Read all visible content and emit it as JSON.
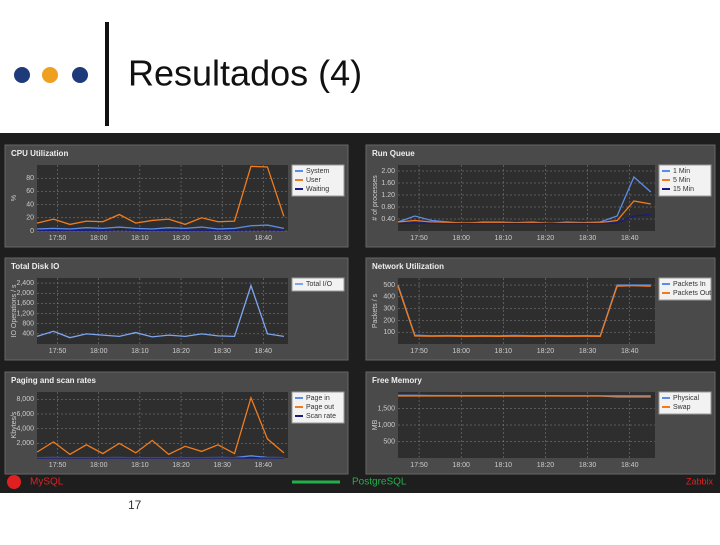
{
  "slide": {
    "title": "Resultados (4)",
    "page_number": "17",
    "labels": [
      "MySQL",
      "PostgreSQL",
      "Zabbix"
    ]
  },
  "chart_data": [
    {
      "type": "line",
      "title": "CPU Utilization",
      "y_label": "%",
      "x": [
        45,
        49,
        53,
        57,
        61,
        65,
        69,
        73,
        77,
        81,
        85,
        89,
        93,
        97,
        101,
        105
      ],
      "xlim": [
        45,
        106
      ],
      "xticks": [
        {
          "value": 50,
          "label": "17:50"
        },
        {
          "value": 60,
          "label": "18:00"
        },
        {
          "value": 70,
          "label": "18:10"
        },
        {
          "value": 80,
          "label": "18:20"
        },
        {
          "value": 90,
          "label": "18:30"
        },
        {
          "value": 100,
          "label": "18:40"
        }
      ],
      "ylim": [
        0,
        100
      ],
      "yticks": [
        0,
        20,
        40,
        60,
        80
      ],
      "grid": true,
      "series": [
        {
          "name": "System",
          "color": "#5b8de8",
          "values": [
            3,
            4,
            3,
            5,
            4,
            6,
            4,
            3,
            5,
            4,
            6,
            3,
            4,
            8,
            9,
            4
          ]
        },
        {
          "name": "User",
          "color": "#f07c1e",
          "values": [
            12,
            18,
            10,
            15,
            14,
            25,
            12,
            16,
            18,
            10,
            20,
            14,
            15,
            98,
            97,
            22
          ]
        },
        {
          "name": "Waiting",
          "color": "#1a1a80",
          "values": [
            1,
            1,
            1,
            1,
            1,
            2,
            1,
            1,
            1,
            1,
            1,
            1,
            1,
            2,
            2,
            1
          ]
        }
      ]
    },
    {
      "type": "line",
      "title": "Run Queue",
      "y_label": "# of processes",
      "x": [
        45,
        49,
        53,
        57,
        61,
        65,
        69,
        73,
        77,
        81,
        85,
        89,
        93,
        97,
        101,
        105
      ],
      "xlim": [
        45,
        106
      ],
      "xticks": [
        {
          "value": 50,
          "label": "17:50"
        },
        {
          "value": 60,
          "label": "18:00"
        },
        {
          "value": 70,
          "label": "18:10"
        },
        {
          "value": 80,
          "label": "18:20"
        },
        {
          "value": 90,
          "label": "18:30"
        },
        {
          "value": 100,
          "label": "18:40"
        }
      ],
      "ylim": [
        0,
        2.2
      ],
      "yticks": [
        {
          "value": 0.4,
          "label": "0.40"
        },
        {
          "value": 0.8,
          "label": "0.80"
        },
        {
          "value": 1.2,
          "label": "1.20"
        },
        {
          "value": 1.6,
          "label": "1.60"
        },
        {
          "value": 2,
          "label": "2.00"
        }
      ],
      "grid": true,
      "series": [
        {
          "name": "1 Min",
          "color": "#5b8de8",
          "values": [
            0.3,
            0.5,
            0.35,
            0.3,
            0.25,
            0.3,
            0.3,
            0.28,
            0.3,
            0.25,
            0.3,
            0.28,
            0.3,
            0.5,
            1.8,
            1.3
          ]
        },
        {
          "name": "5 Min",
          "color": "#f07c1e",
          "values": [
            0.3,
            0.35,
            0.3,
            0.28,
            0.27,
            0.28,
            0.28,
            0.27,
            0.28,
            0.26,
            0.27,
            0.27,
            0.28,
            0.35,
            1.0,
            0.9
          ]
        },
        {
          "name": "15 Min",
          "color": "#1a1a80",
          "values": [
            0.25,
            0.27,
            0.26,
            0.25,
            0.25,
            0.25,
            0.25,
            0.25,
            0.25,
            0.25,
            0.25,
            0.25,
            0.25,
            0.27,
            0.5,
            0.55
          ]
        }
      ]
    },
    {
      "type": "line",
      "title": "Total Disk IO",
      "y_label": "IO Operations / s",
      "x": [
        45,
        49,
        53,
        57,
        61,
        65,
        69,
        73,
        77,
        81,
        85,
        89,
        93,
        97,
        101,
        105
      ],
      "xlim": [
        45,
        106
      ],
      "xticks": [
        {
          "value": 50,
          "label": "17:50"
        },
        {
          "value": 60,
          "label": "18:00"
        },
        {
          "value": 70,
          "label": "18:10"
        },
        {
          "value": 80,
          "label": "18:20"
        },
        {
          "value": 90,
          "label": "18:30"
        },
        {
          "value": 100,
          "label": "18:40"
        }
      ],
      "ylim": [
        0,
        2600
      ],
      "yticks": [
        400,
        800,
        {
          "value": 1200,
          "label": "1,200"
        },
        {
          "value": 1600,
          "label": "1,600"
        },
        {
          "value": 2000,
          "label": "2,000"
        },
        {
          "value": 2400,
          "label": "2,400"
        }
      ],
      "grid": true,
      "series": [
        {
          "name": "Total I/O",
          "color": "#7ea6f0",
          "values": [
            300,
            500,
            250,
            400,
            350,
            300,
            450,
            280,
            350,
            300,
            400,
            320,
            300,
            2300,
            400,
            300
          ]
        }
      ]
    },
    {
      "type": "line",
      "title": "Network Utilization",
      "y_label": "Packets / s",
      "x": [
        45,
        49,
        53,
        57,
        61,
        65,
        69,
        73,
        77,
        81,
        85,
        89,
        93,
        97,
        101,
        105
      ],
      "xlim": [
        45,
        106
      ],
      "xticks": [
        {
          "value": 50,
          "label": "17:50"
        },
        {
          "value": 60,
          "label": "18:00"
        },
        {
          "value": 70,
          "label": "18:10"
        },
        {
          "value": 80,
          "label": "18:20"
        },
        {
          "value": 90,
          "label": "18:30"
        },
        {
          "value": 100,
          "label": "18:40"
        }
      ],
      "ylim": [
        0,
        560
      ],
      "yticks": [
        100,
        200,
        300,
        400,
        500
      ],
      "grid": true,
      "series": [
        {
          "name": "Packets In",
          "color": "#5b8de8",
          "values": [
            500,
            75,
            70,
            72,
            70,
            71,
            70,
            73,
            70,
            72,
            70,
            71,
            70,
            500,
            500,
            500
          ]
        },
        {
          "name": "Packets Out",
          "color": "#f07c1e",
          "values": [
            490,
            68,
            66,
            67,
            65,
            66,
            65,
            67,
            65,
            66,
            65,
            66,
            65,
            490,
            495,
            490
          ]
        }
      ]
    },
    {
      "type": "line",
      "title": "Paging and scan rates",
      "y_label": "Kbytes/s",
      "x": [
        45,
        49,
        53,
        57,
        61,
        65,
        69,
        73,
        77,
        81,
        85,
        89,
        93,
        97,
        101,
        105
      ],
      "xlim": [
        45,
        106
      ],
      "xticks": [
        {
          "value": 50,
          "label": "17:50"
        },
        {
          "value": 60,
          "label": "18:00"
        },
        {
          "value": 70,
          "label": "18:10"
        },
        {
          "value": 80,
          "label": "18:20"
        },
        {
          "value": 90,
          "label": "18:30"
        },
        {
          "value": 100,
          "label": "18:40"
        }
      ],
      "ylim": [
        0,
        9000
      ],
      "yticks": [
        {
          "value": 2000,
          "label": "2,000"
        },
        {
          "value": 4000,
          "label": "4,000"
        },
        {
          "value": 6000,
          "label": "6,000"
        },
        {
          "value": 8000,
          "label": "8,000"
        }
      ],
      "grid": true,
      "series": [
        {
          "name": "Page in",
          "color": "#5b8de8",
          "values": [
            50,
            60,
            40,
            55,
            45,
            60,
            50,
            40,
            55,
            45,
            50,
            60,
            45,
            300,
            80,
            50
          ]
        },
        {
          "name": "Page out",
          "color": "#f07c1e",
          "values": [
            800,
            2200,
            500,
            1800,
            600,
            2000,
            700,
            2400,
            500,
            1600,
            900,
            1800,
            600,
            8200,
            2600,
            700
          ]
        },
        {
          "name": "Scan rate",
          "color": "#1a1a80",
          "values": [
            0,
            0,
            0,
            0,
            0,
            0,
            0,
            0,
            0,
            0,
            0,
            0,
            0,
            0,
            0,
            0
          ]
        }
      ]
    },
    {
      "type": "line",
      "title": "Free Memory",
      "y_label": "MB",
      "x": [
        45,
        49,
        53,
        57,
        61,
        65,
        69,
        73,
        77,
        81,
        85,
        89,
        93,
        97,
        101,
        105
      ],
      "xlim": [
        45,
        106
      ],
      "xticks": [
        {
          "value": 50,
          "label": "17:50"
        },
        {
          "value": 60,
          "label": "18:00"
        },
        {
          "value": 70,
          "label": "18:10"
        },
        {
          "value": 80,
          "label": "18:20"
        },
        {
          "value": 90,
          "label": "18:30"
        },
        {
          "value": 100,
          "label": "18:40"
        }
      ],
      "ylim": [
        0,
        2000
      ],
      "yticks": [
        500,
        {
          "value": 1000,
          "label": "1,000"
        },
        {
          "value": 1500,
          "label": "1,500"
        }
      ],
      "grid": true,
      "series": [
        {
          "name": "Physical",
          "color": "#5b8de8",
          "values": [
            1900,
            1900,
            1895,
            1895,
            1890,
            1890,
            1890,
            1885,
            1885,
            1885,
            1880,
            1880,
            1880,
            1850,
            1850,
            1850
          ]
        },
        {
          "name": "Swap",
          "color": "#f07c1e",
          "values": [
            1880,
            1880,
            1880,
            1880,
            1880,
            1880,
            1880,
            1880,
            1880,
            1880,
            1880,
            1880,
            1880,
            1880,
            1880,
            1880
          ]
        }
      ]
    }
  ]
}
